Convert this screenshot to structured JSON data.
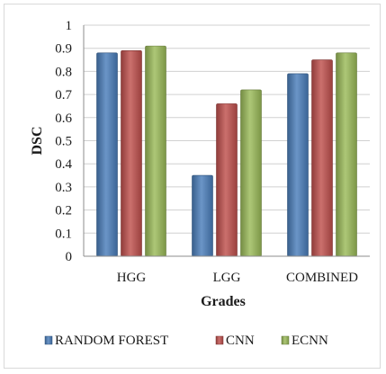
{
  "chart_data": {
    "type": "bar",
    "title": "",
    "xlabel": "Grades",
    "ylabel": "DSC",
    "categories": [
      "HGG",
      "LGG",
      "COMBINED"
    ],
    "ylim": [
      0,
      1
    ],
    "yticks": [
      "0",
      "0.1",
      "0.2",
      "0.3",
      "0.4",
      "0.5",
      "0.6",
      "0.7",
      "0.8",
      "0.9",
      "1"
    ],
    "grid": true,
    "legend_position": "bottom",
    "series": [
      {
        "name": "RANDOM FOREST",
        "color": "#4a7ebb",
        "values": [
          0.88,
          0.35,
          0.79
        ]
      },
      {
        "name": "CNN",
        "color": "#c0504d",
        "values": [
          0.89,
          0.66,
          0.85
        ]
      },
      {
        "name": "ECNN",
        "color": "#9bbb59",
        "values": [
          0.91,
          0.72,
          0.88
        ]
      }
    ]
  }
}
